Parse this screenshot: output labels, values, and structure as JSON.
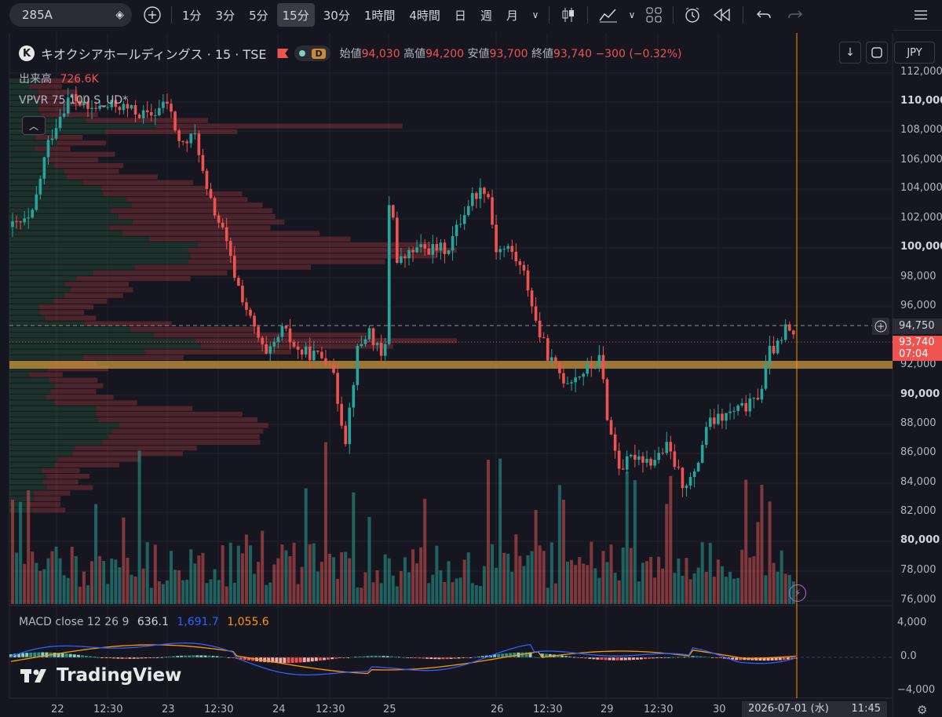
{
  "toolbar": {
    "symbol": "285A",
    "timeframes": [
      "1分",
      "3分",
      "5分",
      "15分",
      "30分",
      "1時間",
      "4時間",
      "日",
      "週",
      "月"
    ],
    "active_timeframe": "15分"
  },
  "legend": {
    "name": "キオクシアホールディングス · 15 · TSE",
    "logo_letter": "K",
    "badge": "D",
    "open_label": "始値",
    "open": "94,030",
    "high_label": "高値",
    "high": "94,200",
    "low_label": "安値",
    "low": "93,700",
    "close_label": "終値",
    "close": "93,740",
    "change": "−300 (−0.32%)"
  },
  "volume_legend": {
    "label": "出来高",
    "value": "726.6K"
  },
  "vpvr_legend": {
    "label": "VPVR 75 100 S_UD*"
  },
  "macd_legend": {
    "label": "MACD close 12 26 9",
    "v1": "636.1",
    "v2": "1,691.7",
    "v3": "1,055.6"
  },
  "currency": "JPY",
  "price_axis": [
    {
      "label": "112,000",
      "bold": false
    },
    {
      "label": "110,000",
      "bold": true
    },
    {
      "label": "108,000",
      "bold": false
    },
    {
      "label": "106,000",
      "bold": false
    },
    {
      "label": "104,000",
      "bold": false
    },
    {
      "label": "102,000",
      "bold": false
    },
    {
      "label": "100,000",
      "bold": true
    },
    {
      "label": "98,000",
      "bold": false
    },
    {
      "label": "96,000",
      "bold": false
    },
    {
      "label": "92,000",
      "bold": false
    },
    {
      "label": "90,000",
      "bold": true
    },
    {
      "label": "88,000",
      "bold": false
    },
    {
      "label": "86,000",
      "bold": false
    },
    {
      "label": "84,000",
      "bold": false
    },
    {
      "label": "82,000",
      "bold": false
    },
    {
      "label": "80,000",
      "bold": true
    },
    {
      "label": "78,000",
      "bold": false
    },
    {
      "label": "76,000",
      "bold": false
    }
  ],
  "macd_axis": [
    "4,000",
    "0.0",
    "−4,000"
  ],
  "crosshair_price": "94,750",
  "last_price": "93,740",
  "countdown": "07:04",
  "time_axis": [
    "22",
    "12:30",
    "23",
    "12:30",
    "24",
    "12:30",
    "25",
    "26",
    "12:30",
    "29",
    "12:30",
    "30"
  ],
  "crosshair_date": "2026-07-01 (水)",
  "crosshair_time": "11:45",
  "brand": "TradingView",
  "colors": {
    "up": "#26a69a",
    "down": "#ef5350",
    "macd": "#2962ff",
    "signal": "#ff9800",
    "poc": "#c8a046"
  },
  "chart_data": {
    "type": "candlestick",
    "price_range": [
      75500,
      113000
    ],
    "candles": []
  }
}
